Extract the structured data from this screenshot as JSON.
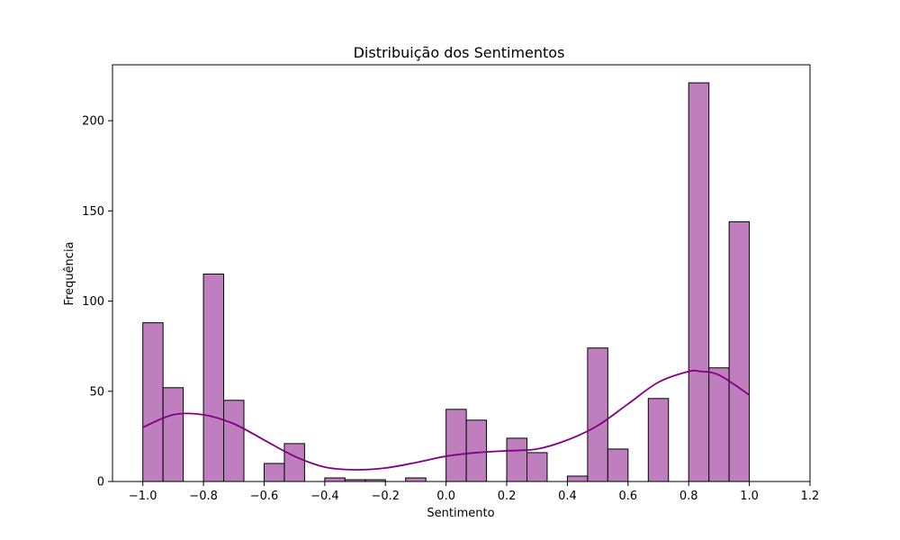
{
  "chart_data": {
    "type": "bar",
    "title": "Distribuição dos Sentimentos",
    "xlabel": "Sentimento",
    "ylabel": "Frequência",
    "xlim": [
      -1.1,
      1.2
    ],
    "ylim": [
      0,
      231
    ],
    "xticks": [
      "−1.0",
      "−0.8",
      "−0.6",
      "−0.4",
      "−0.2",
      "0.0",
      "0.2",
      "0.4",
      "0.6",
      "0.8",
      "1.0",
      "1.2"
    ],
    "xtick_values": [
      -1.0,
      -0.8,
      -0.6,
      -0.4,
      -0.2,
      0.0,
      0.2,
      0.4,
      0.6,
      0.8,
      1.0,
      1.2
    ],
    "yticks": [
      "0",
      "50",
      "100",
      "150",
      "200"
    ],
    "ytick_values": [
      0,
      50,
      100,
      150,
      200
    ],
    "bins": {
      "edges": [
        -1.0,
        -0.9333,
        -0.8667,
        -0.8,
        -0.7333,
        -0.6667,
        -0.6,
        -0.5333,
        -0.4667,
        -0.4,
        -0.3333,
        -0.2667,
        -0.2,
        -0.1333,
        -0.0667,
        0.0,
        0.0667,
        0.1333,
        0.2,
        0.2667,
        0.3333,
        0.4,
        0.4667,
        0.5333,
        0.6,
        0.6667,
        0.7333,
        0.8,
        0.8667,
        0.9333,
        1.0
      ],
      "counts": [
        88,
        52,
        0,
        115,
        45,
        0,
        10,
        21,
        0,
        2,
        1,
        1,
        0,
        2,
        0,
        40,
        34,
        0,
        24,
        16,
        0,
        3,
        74,
        18,
        0,
        46,
        0,
        221,
        63,
        144
      ]
    },
    "kde": {
      "x": [
        -1.0,
        -0.9,
        -0.8,
        -0.7,
        -0.6,
        -0.5,
        -0.4,
        -0.3,
        -0.2,
        -0.1,
        0.0,
        0.1,
        0.2,
        0.3,
        0.4,
        0.5,
        0.6,
        0.7,
        0.8,
        0.84,
        0.9,
        1.0
      ],
      "y": [
        30,
        37,
        37,
        32,
        23,
        14,
        8,
        6.5,
        7.5,
        10.5,
        14,
        16,
        17,
        18,
        23,
        31,
        43,
        55,
        61,
        61,
        59,
        48
      ]
    },
    "colors": {
      "bar_fill": "#bf7fbf",
      "bar_edge": "#000000",
      "kde_line": "#800080"
    },
    "grid": false,
    "legend": "none"
  }
}
